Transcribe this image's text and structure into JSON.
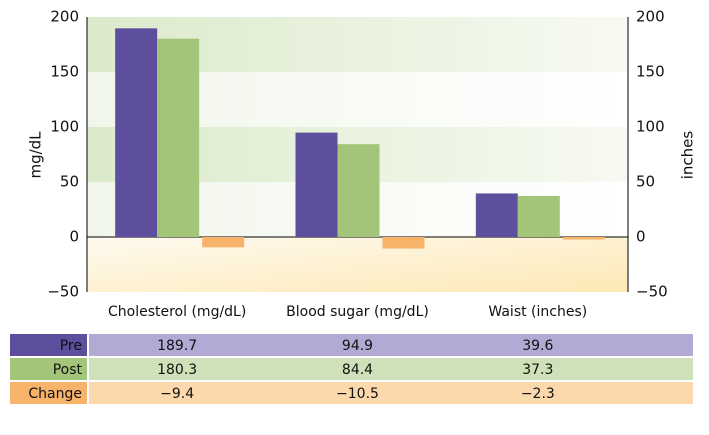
{
  "chart_data": {
    "type": "bar",
    "categories": [
      "Cholesterol (mg/dL)",
      "Blood sugar (mg/dL)",
      "Waist (inches)"
    ],
    "series": [
      {
        "name": "Pre",
        "color": "#5e4f9e",
        "values": [
          189.7,
          94.9,
          39.6
        ]
      },
      {
        "name": "Post",
        "color": "#a3c57a",
        "values": [
          180.3,
          84.4,
          37.3
        ]
      },
      {
        "name": "Change",
        "color": "#f7b36a",
        "values": [
          -9.4,
          -10.5,
          -2.3
        ],
        "value_labels": [
          "−9.4",
          "−10.5",
          "−2.3"
        ]
      }
    ],
    "ylabel": "mg/dL",
    "y2label": "inches",
    "ylim": [
      -50,
      200
    ],
    "yticks": [
      {
        "value": -50,
        "label": "−50"
      },
      0,
      50,
      100,
      150,
      200
    ],
    "y2lim": [
      -50,
      200
    ],
    "y2ticks": [
      {
        "value": -50,
        "label": "−50"
      },
      0,
      50,
      100,
      150,
      200
    ]
  }
}
